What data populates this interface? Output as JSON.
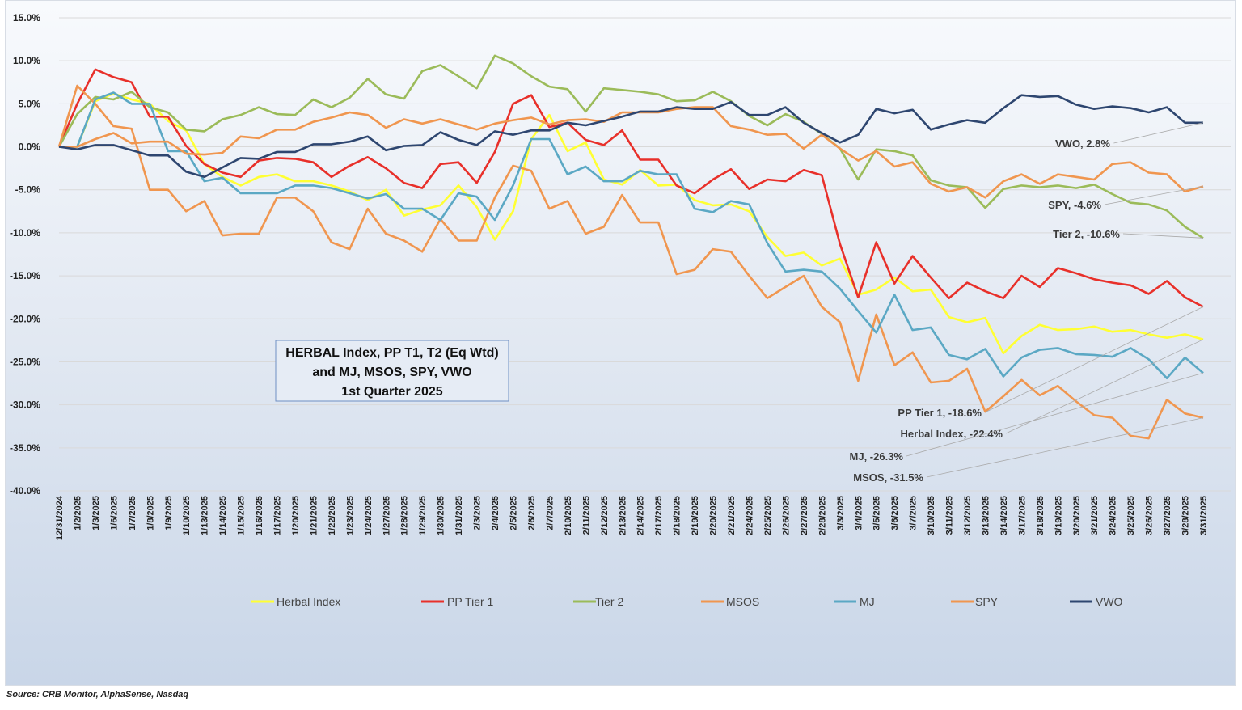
{
  "chart_data": {
    "type": "line",
    "title": [
      "HERBAL Index, PP T1, T2  (Eq Wtd)",
      "and MJ, MSOS, SPY, VWO",
      "1st Quarter 2025"
    ],
    "ylim": [
      -40,
      15
    ],
    "yticks": [
      "15.0%",
      "10.0%",
      "5.0%",
      "0.0%",
      "-5.0%",
      "-10.0%",
      "-15.0%",
      "-20.0%",
      "-25.0%",
      "-30.0%",
      "-35.0%",
      "-40.0%"
    ],
    "ytick_values": [
      15,
      10,
      5,
      0,
      -5,
      -10,
      -15,
      -20,
      -25,
      -30,
      -35,
      -40
    ],
    "grid": true,
    "legend_placement": "bottom",
    "x": [
      "12/31/2024",
      "1/2/2025",
      "1/3/2025",
      "1/6/2025",
      "1/7/2025",
      "1/8/2025",
      "1/9/2025",
      "1/10/2025",
      "1/13/2025",
      "1/14/2025",
      "1/15/2025",
      "1/16/2025",
      "1/17/2025",
      "1/20/2025",
      "1/21/2025",
      "1/22/2025",
      "1/23/2025",
      "1/24/2025",
      "1/27/2025",
      "1/28/2025",
      "1/29/2025",
      "1/30/2025",
      "1/31/2025",
      "2/3/2025",
      "2/4/2025",
      "2/5/2025",
      "2/6/2025",
      "2/7/2025",
      "2/10/2025",
      "2/11/2025",
      "2/12/2025",
      "2/13/2025",
      "2/14/2025",
      "2/17/2025",
      "2/18/2025",
      "2/19/2025",
      "2/20/2025",
      "2/21/2025",
      "2/24/2025",
      "2/25/2025",
      "2/26/2025",
      "2/27/2025",
      "2/28/2025",
      "3/3/2025",
      "3/4/2025",
      "3/5/2025",
      "3/6/2025",
      "3/7/2025",
      "3/10/2025",
      "3/11/2025",
      "3/12/2025",
      "3/13/2025",
      "3/14/2025",
      "3/17/2025",
      "3/18/2025",
      "3/19/2025",
      "3/20/2025",
      "3/21/2025",
      "3/24/2025",
      "3/25/2025",
      "3/26/2025",
      "3/27/2025",
      "3/28/2025",
      "3/31/2025"
    ],
    "series": [
      {
        "name": "Herbal Index",
        "color": "#ffff33",
        "values": [
          0,
          0,
          5.3,
          6.2,
          5.5,
          5.0,
          3.0,
          1.9,
          -2.0,
          -3.5,
          -4.5,
          -3.5,
          -3.2,
          -4.0,
          -4.0,
          -4.5,
          -5.2,
          -6.2,
          -5.0,
          -8.0,
          -7.3,
          -6.8,
          -4.5,
          -7.0,
          -10.8,
          -7.5,
          0.9,
          3.7,
          -0.5,
          0.5,
          -3.8,
          -4.4,
          -2.7,
          -4.5,
          -4.4,
          -6.2,
          -6.8,
          -6.7,
          -7.5,
          -10.5,
          -12.7,
          -12.3,
          -13.8,
          -13.0,
          -17.2,
          -16.6,
          -15.2,
          -16.8,
          -16.6,
          -19.8,
          -20.4,
          -19.9,
          -24.0,
          -22.0,
          -20.7,
          -21.3,
          -21.2,
          -20.9,
          -21.5,
          -21.3,
          -21.8,
          -22.2,
          -21.8,
          -22.4
        ]
      },
      {
        "name": "PP Tier 1",
        "color": "#e8302a",
        "values": [
          0,
          5.0,
          9.0,
          8.1,
          7.5,
          3.5,
          3.5,
          0.1,
          -2.0,
          -3.0,
          -3.5,
          -1.6,
          -1.3,
          -1.4,
          -1.8,
          -3.5,
          -2.2,
          -1.2,
          -2.5,
          -4.2,
          -4.8,
          -2.0,
          -1.8,
          -4.2,
          -0.6,
          5.0,
          6.0,
          2.3,
          2.8,
          0.8,
          0.2,
          1.9,
          -1.5,
          -1.5,
          -4.5,
          -5.4,
          -3.8,
          -2.6,
          -4.9,
          -3.8,
          -4.0,
          -2.7,
          -3.3,
          -11.3,
          -17.5,
          -11.1,
          -15.9,
          -12.7,
          -15.2,
          -17.6,
          -15.8,
          -16.8,
          -17.6,
          -15.0,
          -16.3,
          -14.1,
          -14.7,
          -15.4,
          -15.8,
          -16.1,
          -17.1,
          -15.6,
          -17.5,
          -18.6
        ]
      },
      {
        "name": "Tier 2",
        "color": "#9bbb59",
        "values": [
          0,
          3.8,
          5.8,
          5.5,
          6.4,
          4.6,
          4.0,
          2.0,
          1.8,
          3.2,
          3.7,
          4.6,
          3.8,
          3.7,
          5.5,
          4.6,
          5.7,
          7.9,
          6.1,
          5.6,
          8.8,
          9.5,
          8.2,
          6.8,
          10.6,
          9.7,
          8.2,
          7.0,
          6.7,
          4.1,
          6.8,
          6.6,
          6.4,
          6.1,
          5.3,
          5.4,
          6.4,
          5.3,
          3.6,
          2.5,
          3.8,
          2.9,
          1.5,
          -0.2,
          -3.8,
          -0.3,
          -0.5,
          -1.0,
          -3.9,
          -4.5,
          -4.7,
          -7.1,
          -4.9,
          -4.5,
          -4.7,
          -4.5,
          -4.8,
          -4.4,
          -5.5,
          -6.5,
          -6.7,
          -7.4,
          -9.3,
          -10.6
        ]
      },
      {
        "name": "MSOS",
        "color": "#f0964f",
        "values": [
          0,
          7.1,
          5.0,
          2.4,
          2.1,
          -5.0,
          -5.0,
          -7.5,
          -6.3,
          -10.3,
          -10.1,
          -10.1,
          -5.9,
          -5.9,
          -7.5,
          -11.1,
          -11.9,
          -7.2,
          -10.1,
          -10.9,
          -12.2,
          -8.4,
          -10.9,
          -10.9,
          -5.9,
          -2.2,
          -2.8,
          -7.2,
          -6.3,
          -10.1,
          -9.3,
          -5.6,
          -8.8,
          -8.8,
          -14.8,
          -14.3,
          -11.9,
          -12.2,
          -15.0,
          -17.6,
          -16.3,
          -15.0,
          -18.6,
          -20.4,
          -27.2,
          -19.5,
          -25.4,
          -23.9,
          -27.4,
          -27.2,
          -25.8,
          -30.8,
          -29.0,
          -27.1,
          -28.9,
          -27.8,
          -29.6,
          -31.2,
          -31.5,
          -33.6,
          -33.9,
          -29.4,
          -31.0,
          -31.5
        ]
      },
      {
        "name": "MJ",
        "color": "#5ba8c4",
        "values": [
          0,
          0,
          5.5,
          6.3,
          5.0,
          5.0,
          -0.5,
          -0.5,
          -4.0,
          -3.6,
          -5.4,
          -5.4,
          -5.4,
          -4.5,
          -4.5,
          -4.8,
          -5.4,
          -6.0,
          -5.5,
          -7.2,
          -7.2,
          -8.5,
          -5.4,
          -5.8,
          -8.5,
          -4.5,
          0.9,
          0.9,
          -3.2,
          -2.3,
          -4.0,
          -4.0,
          -2.8,
          -3.2,
          -3.2,
          -7.2,
          -7.6,
          -6.3,
          -6.7,
          -11.2,
          -14.5,
          -14.3,
          -14.5,
          -16.5,
          -19.1,
          -21.6,
          -17.2,
          -21.3,
          -21.0,
          -24.2,
          -24.7,
          -23.5,
          -26.7,
          -24.5,
          -23.6,
          -23.4,
          -24.1,
          -24.2,
          -24.4,
          -23.4,
          -24.7,
          -26.9,
          -24.5,
          -26.3
        ]
      },
      {
        "name": "SPY",
        "color": "#f0964f",
        "values": [
          0,
          0,
          0.9,
          1.6,
          0.4,
          0.6,
          0.6,
          -0.8,
          -0.9,
          -0.7,
          1.2,
          1.0,
          2.0,
          2.0,
          2.9,
          3.4,
          4.0,
          3.7,
          2.2,
          3.2,
          2.7,
          3.2,
          2.6,
          2.0,
          2.7,
          3.1,
          3.4,
          2.6,
          3.1,
          3.2,
          2.9,
          4.0,
          4.0,
          4.0,
          4.4,
          4.6,
          4.6,
          2.4,
          2.0,
          1.4,
          1.5,
          -0.2,
          1.4,
          -0.2,
          -1.6,
          -0.5,
          -2.3,
          -1.8,
          -4.3,
          -5.2,
          -4.7,
          -5.9,
          -4.0,
          -3.2,
          -4.3,
          -3.2,
          -3.5,
          -3.8,
          -2.0,
          -1.8,
          -3.0,
          -3.2,
          -5.2,
          -4.6
        ]
      },
      {
        "name": "VWO",
        "color": "#2e4670",
        "values": [
          0,
          -0.3,
          0.2,
          0.2,
          -0.4,
          -1.0,
          -1.0,
          -2.9,
          -3.5,
          -2.4,
          -1.3,
          -1.4,
          -0.6,
          -0.6,
          0.3,
          0.3,
          0.6,
          1.2,
          -0.4,
          0.1,
          0.2,
          1.7,
          0.8,
          0.2,
          1.8,
          1.4,
          1.9,
          1.9,
          2.8,
          2.5,
          3.0,
          3.5,
          4.1,
          4.1,
          4.6,
          4.4,
          4.4,
          5.2,
          3.7,
          3.7,
          4.6,
          2.8,
          1.6,
          0.5,
          1.4,
          4.4,
          3.9,
          4.3,
          2.0,
          2.6,
          3.1,
          2.8,
          4.5,
          6.0,
          5.8,
          5.9,
          4.9,
          4.4,
          4.7,
          4.5,
          4.0,
          4.6,
          2.8,
          2.8
        ]
      }
    ],
    "annotations": [
      {
        "series": "VWO",
        "text": "VWO, 2.8%"
      },
      {
        "series": "SPY",
        "text": "SPY, -4.6%"
      },
      {
        "series": "Tier 2",
        "text": "Tier 2, -10.6%"
      },
      {
        "series": "PP Tier 1",
        "text": "PP Tier 1, -18.6%"
      },
      {
        "series": "Herbal Index",
        "text": "Herbal Index, -22.4%"
      },
      {
        "series": "MJ",
        "text": "MJ, -26.3%"
      },
      {
        "series": "MSOS",
        "text": "MSOS, -31.5%"
      }
    ]
  },
  "source": "Source: CRB Monitor, AlphaSense, Nasdaq"
}
